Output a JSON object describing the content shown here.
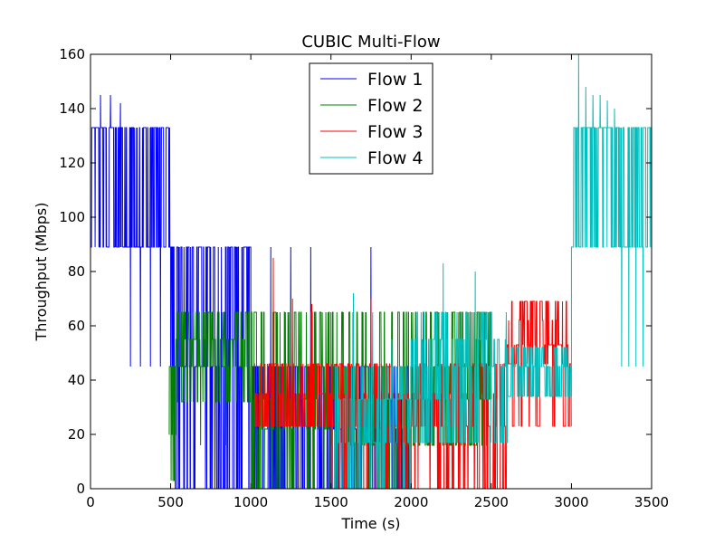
{
  "chart_data": {
    "type": "line",
    "title": "CUBIC Multi-Flow",
    "xlabel": "Time (s)",
    "ylabel": "Throughput (Mbps)",
    "xlim": [
      0,
      3500
    ],
    "ylim": [
      0,
      160
    ],
    "xticks": [
      0,
      500,
      1000,
      1500,
      2000,
      2500,
      3000,
      3500
    ],
    "yticks": [
      0,
      20,
      40,
      60,
      80,
      100,
      120,
      140,
      160
    ],
    "grid": false,
    "legend_position": "top-center",
    "series": [
      {
        "name": "Flow 1",
        "color": "#0000ff",
        "segments": [
          {
            "t0": 0,
            "t1": 500,
            "levels": [
              89,
              133
            ],
            "spikes": [
              145,
              145,
              142,
              45,
              45,
              45,
              45
            ]
          },
          {
            "t0": 500,
            "t1": 1000,
            "levels": [
              0,
              45,
              89
            ],
            "spikes": [
              89,
              89,
              89
            ]
          },
          {
            "t0": 1000,
            "t1": 1500,
            "levels": [
              0,
              45
            ],
            "spikes": [
              89,
              89,
              89
            ]
          },
          {
            "t0": 1500,
            "t1": 2000,
            "levels": [
              0,
              22,
              45
            ],
            "spikes": [
              89
            ]
          }
        ]
      },
      {
        "name": "Flow 2",
        "color": "#008000",
        "segments": [
          {
            "t0": 490,
            "t1": 530,
            "levels": [
              3,
              20,
              45
            ],
            "spikes": []
          },
          {
            "t0": 530,
            "t1": 1000,
            "levels": [
              32,
              45,
              55,
              65
            ],
            "spikes": [
              16,
              16
            ]
          },
          {
            "t0": 1000,
            "t1": 1500,
            "levels": [
              0,
              22,
              33,
              45,
              65
            ],
            "spikes": [
              70
            ]
          },
          {
            "t0": 1500,
            "t1": 2000,
            "levels": [
              0,
              16,
              33,
              45,
              65
            ],
            "spikes": []
          },
          {
            "t0": 2000,
            "t1": 2500,
            "levels": [
              16,
              33,
              45,
              65
            ],
            "spikes": []
          }
        ]
      },
      {
        "name": "Flow 3",
        "color": "#ff0000",
        "segments": [
          {
            "t0": 1020,
            "t1": 1500,
            "levels": [
              23,
              35,
              46
            ],
            "spikes": [
              85,
              70,
              68
            ]
          },
          {
            "t0": 1500,
            "t1": 2000,
            "levels": [
              0,
              23,
              35,
              46
            ],
            "spikes": [
              70
            ]
          },
          {
            "t0": 2000,
            "t1": 2600,
            "levels": [
              0,
              23,
              35,
              46
            ],
            "spikes": [
              65
            ]
          },
          {
            "t0": 2600,
            "t1": 3000,
            "levels": [
              23,
              46,
              53,
              62,
              69
            ],
            "spikes": []
          }
        ]
      },
      {
        "name": "Flow 4",
        "color": "#00bfbf",
        "segments": [
          {
            "t0": 1520,
            "t1": 2000,
            "levels": [
              0,
              17,
              33,
              45
            ],
            "spikes": [
              72,
              65,
              55
            ]
          },
          {
            "t0": 2000,
            "t1": 2600,
            "levels": [
              17,
              33,
              45,
              55,
              65
            ],
            "spikes": [
              83,
              80
            ]
          },
          {
            "t0": 2600,
            "t1": 3000,
            "levels": [
              34,
              45,
              52
            ],
            "spikes": []
          },
          {
            "t0": 3000,
            "t1": 3500,
            "levels": [
              89,
              133
            ],
            "spikes": [
              160,
              148,
              145,
              145,
              143,
              140,
              45,
              45,
              45,
              45
            ]
          }
        ]
      }
    ]
  }
}
